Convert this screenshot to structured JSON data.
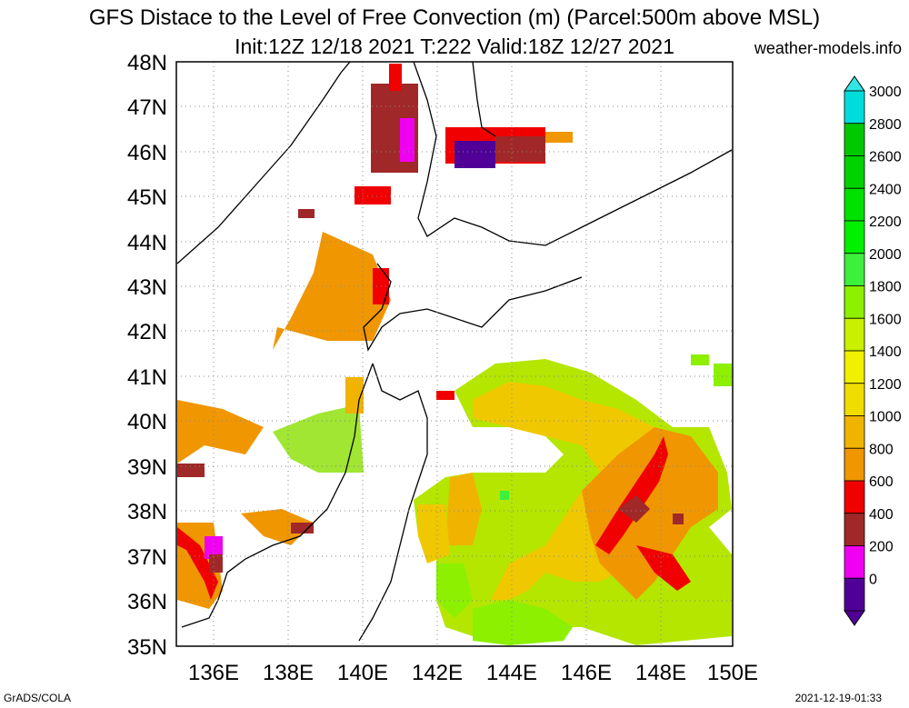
{
  "header": {
    "title_line1": "GFS Distace to the Level of Free Convection (m) (Parcel:500m above MSL)",
    "title_line2": "Init:12Z 12/18 2021 T:222 Valid:18Z 12/27 2021",
    "site": "weather-models.info"
  },
  "footer": {
    "left": "GrADS/COLA",
    "right": "2021-12-19-01:33"
  },
  "map": {
    "lat_labels": [
      "48N",
      "47N",
      "46N",
      "45N",
      "44N",
      "43N",
      "42N",
      "41N",
      "40N",
      "39N",
      "38N",
      "37N",
      "36N",
      "35N"
    ],
    "lon_labels": [
      "136E",
      "138E",
      "140E",
      "142E",
      "144E",
      "146E",
      "148E",
      "150E"
    ],
    "lat_range": [
      35,
      48
    ],
    "lon_range": [
      135,
      150
    ],
    "grid": true
  },
  "colorbar": {
    "levels": [
      "3000",
      "2800",
      "2600",
      "2400",
      "2200",
      "2000",
      "1800",
      "1600",
      "1400",
      "1200",
      "1000",
      "800",
      "600",
      "400",
      "200",
      "0"
    ],
    "colors": [
      "#00dcdc",
      "#00c800",
      "#00d200",
      "#00e100",
      "#00f000",
      "#3cf03c",
      "#8cf000",
      "#c8f000",
      "#f0f000",
      "#f0dc00",
      "#f0b400",
      "#f09600",
      "#f00000",
      "#a02828",
      "#f000f0",
      "#500096"
    ],
    "top_arrow_color": "#33e6e6",
    "bottom_arrow_color": "#500096"
  }
}
